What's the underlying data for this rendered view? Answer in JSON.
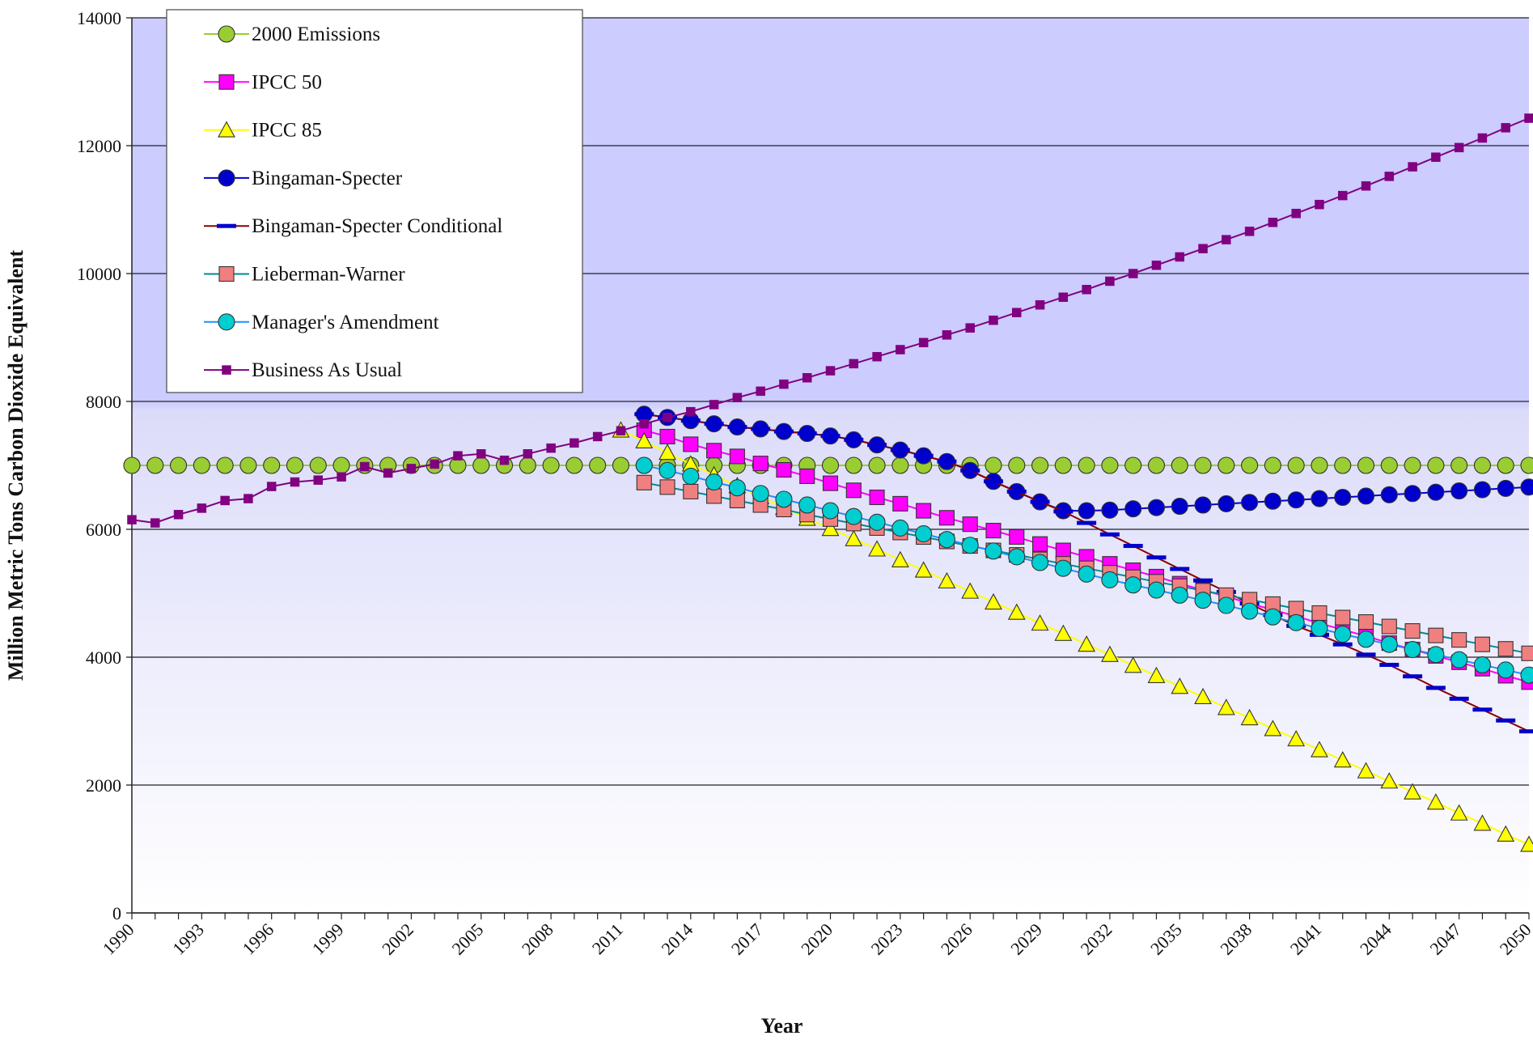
{
  "chart_data": {
    "type": "line",
    "title": "",
    "xlabel": "Year",
    "ylabel": "Million Metric Tons Carbon Dioxide Equivalent",
    "xlim": [
      1990,
      2050
    ],
    "ylim": [
      0,
      14000
    ],
    "y_ticks": [
      0,
      2000,
      4000,
      6000,
      8000,
      10000,
      12000,
      14000
    ],
    "x_tick_labels": [
      "1990",
      "1993",
      "1996",
      "1999",
      "2002",
      "2005",
      "2008",
      "2011",
      "2014",
      "2017",
      "2020",
      "2023",
      "2026",
      "2029",
      "2032",
      "2035",
      "2038",
      "2041",
      "2044",
      "2047",
      "2050"
    ],
    "grid": "horizontal",
    "legend_position": "top-left",
    "background": "gradient lavender to white",
    "series": [
      {
        "name": "2000 Emissions",
        "color": "#9acd32",
        "marker": "circle",
        "start_year": 1990,
        "values": [
          7000,
          7000,
          7000,
          7000,
          7000,
          7000,
          7000,
          7000,
          7000,
          7000,
          7000,
          7000,
          7000,
          7000,
          7000,
          7000,
          7000,
          7000,
          7000,
          7000,
          7000,
          7000,
          7000,
          7000,
          7000,
          7000,
          7000,
          7000,
          7000,
          7000,
          7000,
          7000,
          7000,
          7000,
          7000,
          7000,
          7000,
          7000,
          7000,
          7000,
          7000,
          7000,
          7000,
          7000,
          7000,
          7000,
          7000,
          7000,
          7000,
          7000,
          7000,
          7000,
          7000,
          7000,
          7000,
          7000,
          7000,
          7000,
          7000,
          7000,
          7000
        ]
      },
      {
        "name": "IPCC 50",
        "color": "#ff00ff",
        "marker": "square",
        "start_year": 2012,
        "values": [
          7550,
          7450,
          7330,
          7230,
          7140,
          7030,
          6930,
          6830,
          6720,
          6610,
          6500,
          6400,
          6290,
          6180,
          6080,
          5980,
          5880,
          5770,
          5670,
          5570,
          5460,
          5360,
          5260,
          5150,
          5050,
          4950,
          4840,
          4740,
          4640,
          4530,
          4430,
          4330,
          4220,
          4120,
          4020,
          3920,
          3820,
          3710,
          3610,
          3510
        ]
      },
      {
        "name": "IPCC 85",
        "color": "#ffff00",
        "marker": "triangle",
        "start_year": 2011,
        "values": [
          7550,
          7380,
          7200,
          7020,
          6850,
          6680,
          6510,
          6340,
          6170,
          6010,
          5850,
          5690,
          5520,
          5360,
          5190,
          5030,
          4860,
          4700,
          4530,
          4370,
          4200,
          4040,
          3870,
          3710,
          3540,
          3380,
          3210,
          3050,
          2880,
          2720,
          2550,
          2390,
          2220,
          2060,
          1890,
          1730,
          1560,
          1400,
          1230,
          1070
        ]
      },
      {
        "name": "Bingaman-Specter",
        "color": "#0000cd",
        "marker": "circle",
        "start_year": 2012,
        "values": [
          7800,
          7750,
          7700,
          7650,
          7600,
          7570,
          7530,
          7500,
          7460,
          7400,
          7320,
          7240,
          7150,
          7060,
          6920,
          6750,
          6590,
          6430,
          6290,
          6290,
          6300,
          6320,
          6340,
          6360,
          6380,
          6400,
          6420,
          6440,
          6460,
          6480,
          6500,
          6520,
          6540,
          6560,
          6580,
          6600,
          6620,
          6640,
          6660,
          6680
        ]
      },
      {
        "name": "Bingaman-Specter Conditional",
        "color": "#8b0000",
        "marker_color": "#0000cd",
        "marker": "dash",
        "start_year": 2012,
        "values": [
          7800,
          7750,
          7700,
          7650,
          7600,
          7570,
          7530,
          7500,
          7460,
          7400,
          7320,
          7240,
          7150,
          7060,
          6920,
          6750,
          6590,
          6430,
          6280,
          6100,
          5920,
          5740,
          5560,
          5380,
          5200,
          5020,
          4840,
          4660,
          4490,
          4350,
          4200,
          4040,
          3880,
          3700,
          3520,
          3350,
          3180,
          3010,
          2840,
          2840
        ]
      },
      {
        "name": "Lieberman-Warner",
        "color": "#008b8b",
        "marker_color": "#f08080",
        "marker": "square",
        "start_year": 2012,
        "values": [
          6730,
          6660,
          6590,
          6520,
          6450,
          6380,
          6310,
          6230,
          6160,
          6090,
          6020,
          5950,
          5880,
          5810,
          5740,
          5670,
          5600,
          5530,
          5460,
          5390,
          5320,
          5250,
          5180,
          5110,
          5040,
          4970,
          4900,
          4830,
          4760,
          4690,
          4620,
          4550,
          4480,
          4410,
          4340,
          4270,
          4200,
          4130,
          4060,
          4040
        ]
      },
      {
        "name": "Manager's Amendment",
        "color": "#1e90ff",
        "marker_color": "#00ced1",
        "marker": "circle",
        "start_year": 2012,
        "values": [
          7000,
          6920,
          6830,
          6740,
          6650,
          6560,
          6470,
          6380,
          6290,
          6200,
          6110,
          6020,
          5930,
          5840,
          5750,
          5660,
          5570,
          5480,
          5390,
          5300,
          5210,
          5130,
          5050,
          4970,
          4890,
          4810,
          4720,
          4630,
          4540,
          4450,
          4360,
          4280,
          4200,
          4120,
          4040,
          3960,
          3880,
          3800,
          3720,
          3720
        ]
      },
      {
        "name": "Business As Usual",
        "color": "#800080",
        "marker": "small-square",
        "start_year": 1990,
        "values": [
          6150,
          6100,
          6230,
          6330,
          6450,
          6480,
          6670,
          6740,
          6770,
          6820,
          6980,
          6880,
          6950,
          7020,
          7150,
          7180,
          7080,
          7180,
          7270,
          7350,
          7450,
          7540,
          7650,
          7750,
          7840,
          7950,
          8060,
          8160,
          8270,
          8370,
          8480,
          8590,
          8700,
          8810,
          8920,
          9040,
          9150,
          9270,
          9390,
          9510,
          9630,
          9750,
          9880,
          10000,
          10130,
          10260,
          10390,
          10530,
          10660,
          10800,
          10940,
          11080,
          11220,
          11370,
          11520,
          11670,
          11820,
          11970,
          12120,
          12280,
          12430
        ]
      }
    ]
  }
}
